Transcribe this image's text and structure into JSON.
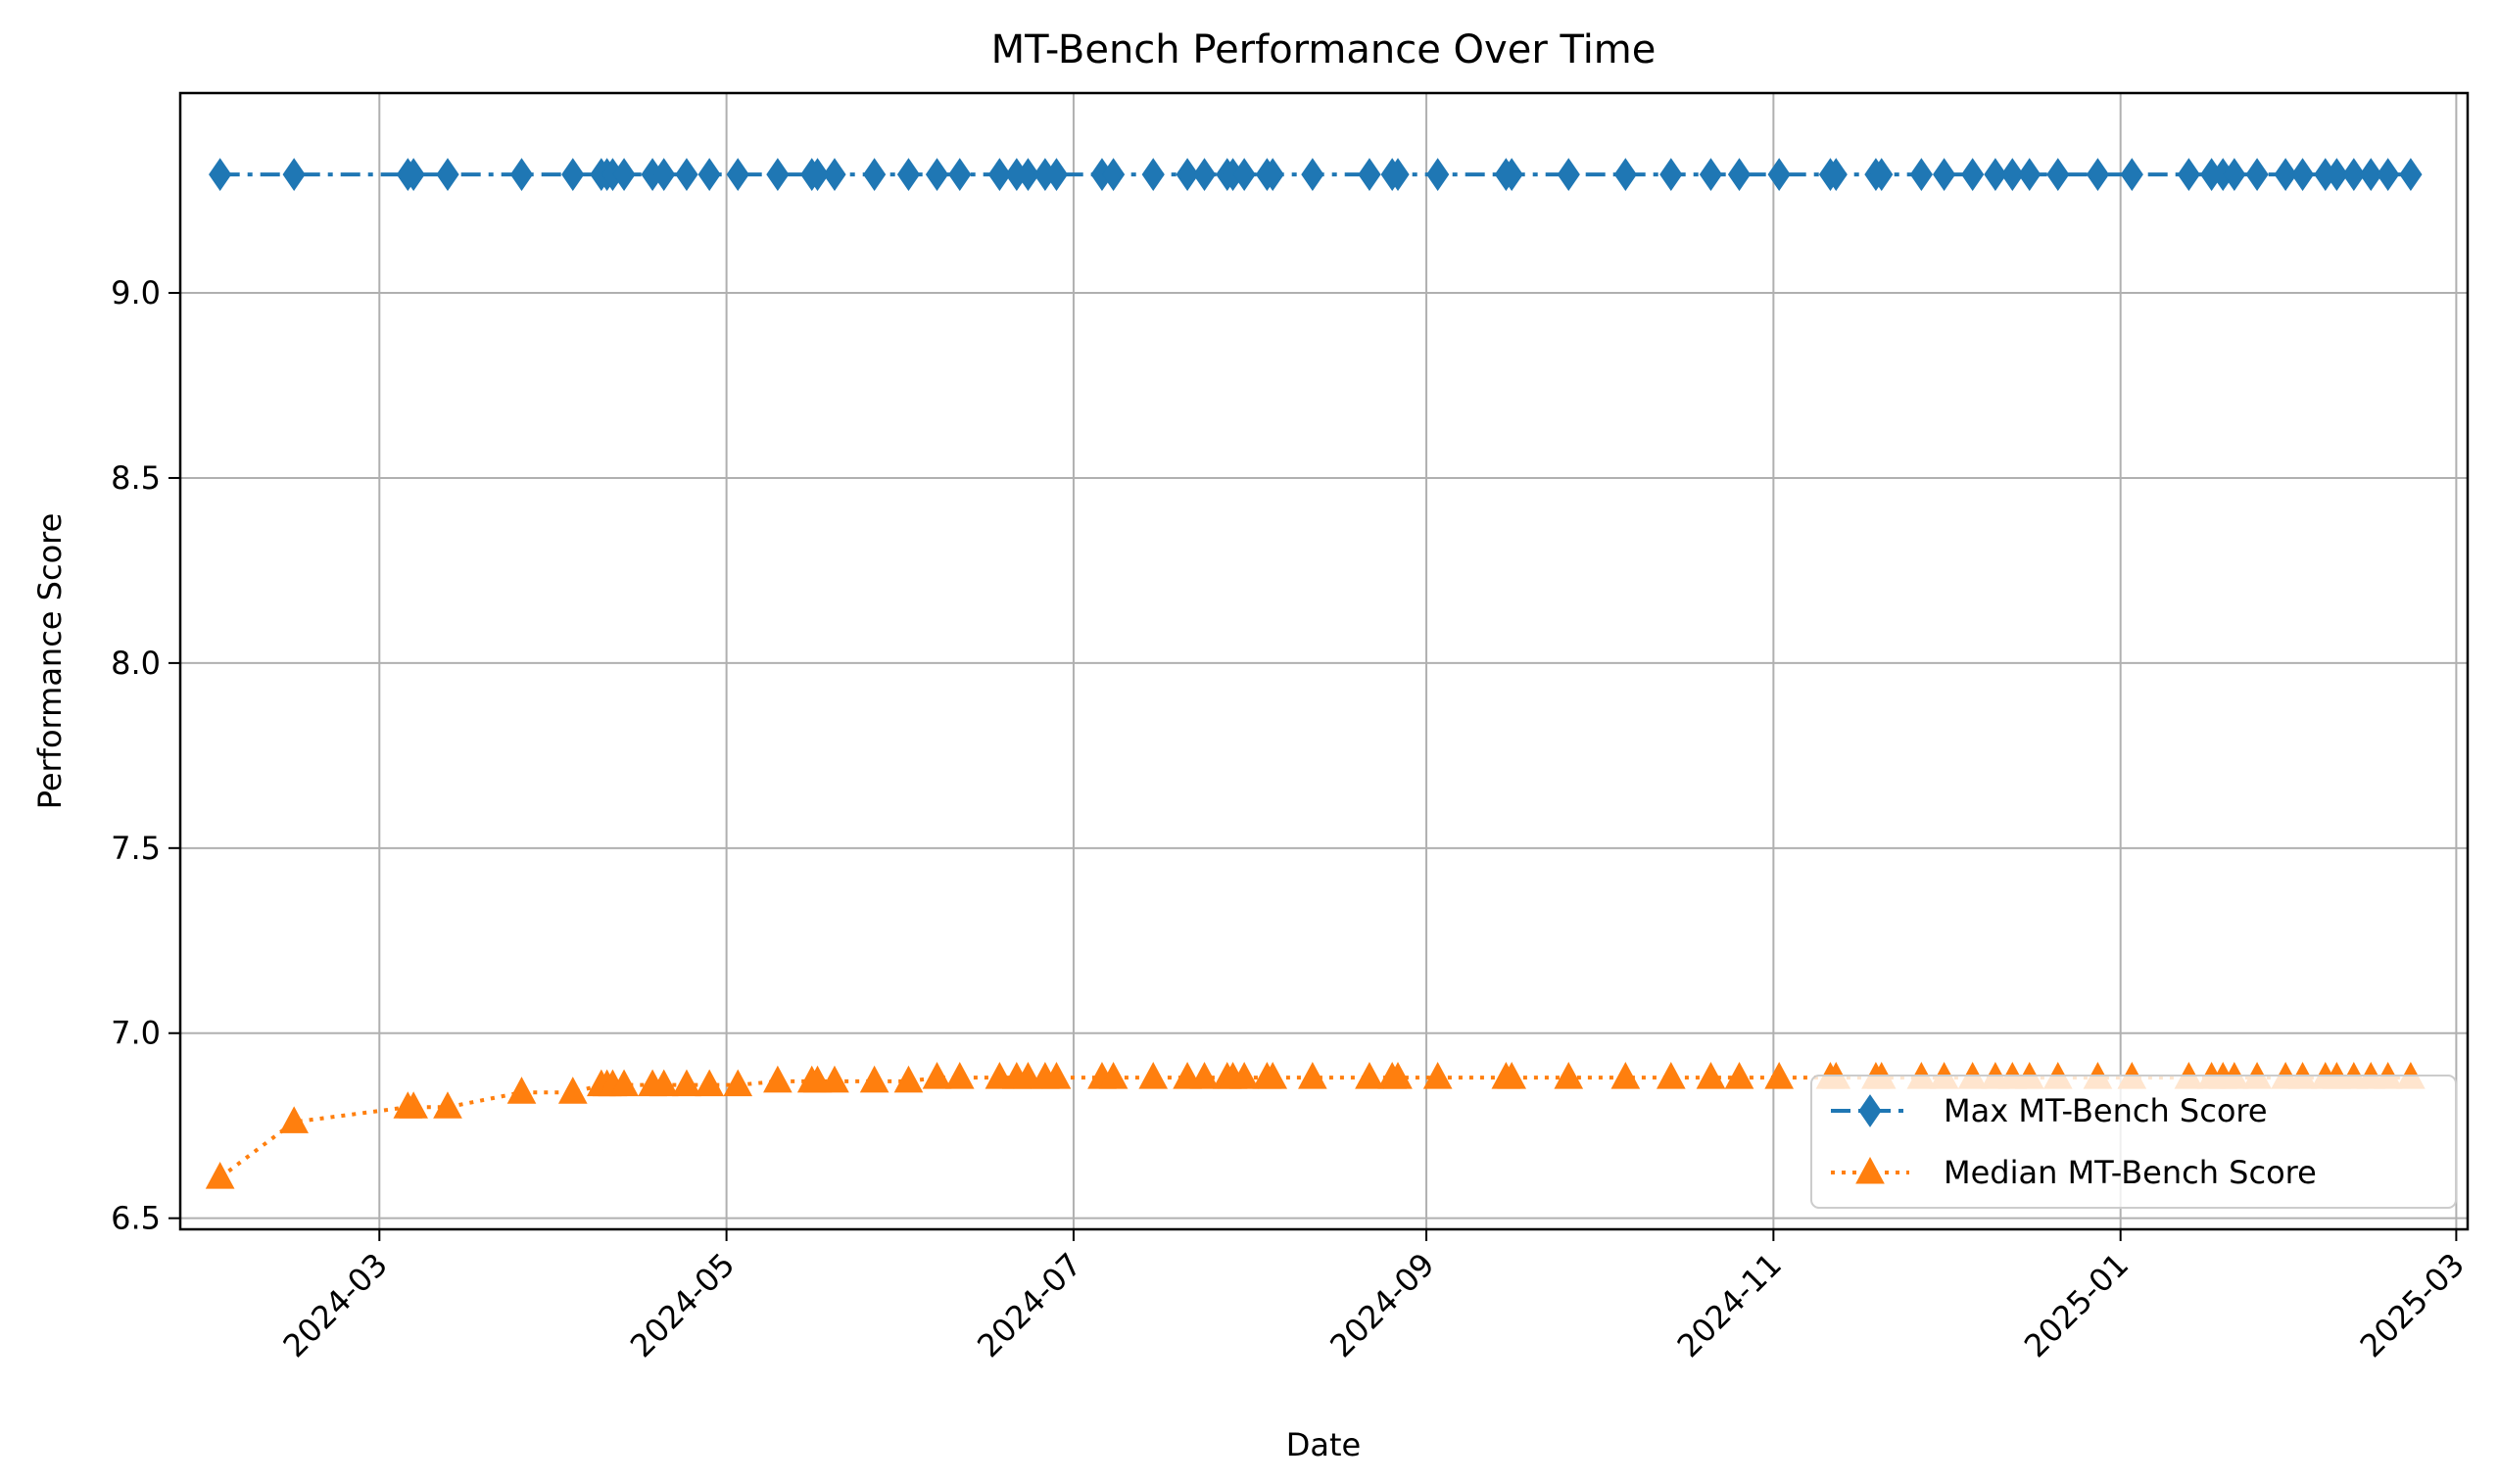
{
  "chart_data": {
    "type": "line",
    "title": "MT-Bench Performance Over Time",
    "xlabel": "Date",
    "ylabel": "Performance Score",
    "x_ticks": [
      "2024-03",
      "2024-05",
      "2024-07",
      "2024-09",
      "2024-11",
      "2025-01",
      "2025-03"
    ],
    "x_range": [
      "2024-01-26",
      "2025-03-03"
    ],
    "y_ticks": [
      6.5,
      7.0,
      7.5,
      8.0,
      8.5,
      9.0
    ],
    "ylim": [
      6.47,
      9.54
    ],
    "grid": true,
    "legend_position": "lower-right",
    "x": [
      "2024-02-02",
      "2024-02-15",
      "2024-03-06",
      "2024-03-07",
      "2024-03-13",
      "2024-03-26",
      "2024-04-04",
      "2024-04-09",
      "2024-04-10",
      "2024-04-11",
      "2024-04-13",
      "2024-04-18",
      "2024-04-20",
      "2024-04-24",
      "2024-04-28",
      "2024-05-03",
      "2024-05-10",
      "2024-05-16",
      "2024-05-17",
      "2024-05-20",
      "2024-05-27",
      "2024-06-02",
      "2024-06-07",
      "2024-06-11",
      "2024-06-18",
      "2024-06-21",
      "2024-06-23",
      "2024-06-26",
      "2024-06-28",
      "2024-07-06",
      "2024-07-08",
      "2024-07-15",
      "2024-07-21",
      "2024-07-24",
      "2024-07-28",
      "2024-07-29",
      "2024-07-31",
      "2024-08-04",
      "2024-08-05",
      "2024-08-12",
      "2024-08-22",
      "2024-08-26",
      "2024-08-27",
      "2024-09-03",
      "2024-09-15",
      "2024-09-16",
      "2024-09-26",
      "2024-10-06",
      "2024-10-14",
      "2024-10-21",
      "2024-10-26",
      "2024-11-02",
      "2024-11-11",
      "2024-11-12",
      "2024-11-19",
      "2024-11-20",
      "2024-11-27",
      "2024-12-01",
      "2024-12-06",
      "2024-12-10",
      "2024-12-13",
      "2024-12-16",
      "2024-12-21",
      "2024-12-28",
      "2025-01-03",
      "2025-01-13",
      "2025-01-17",
      "2025-01-19",
      "2025-01-21",
      "2025-01-25",
      "2025-01-30",
      "2025-02-02",
      "2025-02-06",
      "2025-02-08",
      "2025-02-11",
      "2025-02-14",
      "2025-02-17",
      "2025-02-21"
    ],
    "series": [
      {
        "name": "Max MT-Bench Score",
        "color": "#1f77b4",
        "marker": "thin-diamond",
        "linestyle": "dash-dot",
        "values": [
          9.32,
          9.32,
          9.32,
          9.32,
          9.32,
          9.32,
          9.32,
          9.32,
          9.32,
          9.32,
          9.32,
          9.32,
          9.32,
          9.32,
          9.32,
          9.32,
          9.32,
          9.32,
          9.32,
          9.32,
          9.32,
          9.32,
          9.32,
          9.32,
          9.32,
          9.32,
          9.32,
          9.32,
          9.32,
          9.32,
          9.32,
          9.32,
          9.32,
          9.32,
          9.32,
          9.32,
          9.32,
          9.32,
          9.32,
          9.32,
          9.32,
          9.32,
          9.32,
          9.32,
          9.32,
          9.32,
          9.32,
          9.32,
          9.32,
          9.32,
          9.32,
          9.32,
          9.32,
          9.32,
          9.32,
          9.32,
          9.32,
          9.32,
          9.32,
          9.32,
          9.32,
          9.32,
          9.32,
          9.32,
          9.32,
          9.32,
          9.32,
          9.32,
          9.32,
          9.32,
          9.32,
          9.32,
          9.32,
          9.32,
          9.32,
          9.32,
          9.32,
          9.32
        ]
      },
      {
        "name": "Median MT-Bench Score",
        "color": "#ff7f0e",
        "marker": "triangle-up",
        "linestyle": "dotted",
        "values": [
          6.61,
          6.76,
          6.8,
          6.8,
          6.8,
          6.84,
          6.84,
          6.86,
          6.86,
          6.86,
          6.86,
          6.86,
          6.86,
          6.86,
          6.86,
          6.86,
          6.87,
          6.87,
          6.87,
          6.87,
          6.87,
          6.87,
          6.88,
          6.88,
          6.88,
          6.88,
          6.88,
          6.88,
          6.88,
          6.88,
          6.88,
          6.88,
          6.88,
          6.88,
          6.88,
          6.88,
          6.88,
          6.88,
          6.88,
          6.88,
          6.88,
          6.88,
          6.88,
          6.88,
          6.88,
          6.88,
          6.88,
          6.88,
          6.88,
          6.88,
          6.88,
          6.88,
          6.88,
          6.88,
          6.88,
          6.88,
          6.88,
          6.88,
          6.88,
          6.88,
          6.88,
          6.88,
          6.88,
          6.88,
          6.88,
          6.88,
          6.88,
          6.88,
          6.88,
          6.88,
          6.88,
          6.88,
          6.88,
          6.88,
          6.88,
          6.88,
          6.88,
          6.88
        ]
      }
    ]
  }
}
